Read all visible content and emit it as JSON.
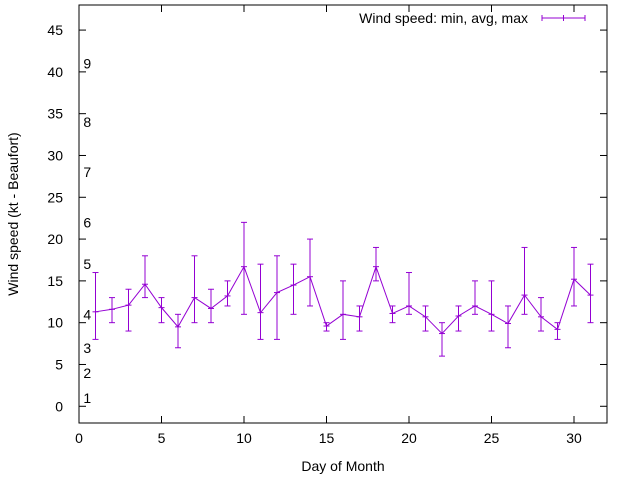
{
  "chart_data": {
    "type": "line",
    "title": "",
    "xlabel": "Day of Month",
    "ylabel": "Wind speed (kt - Beaufort)",
    "xlim": [
      0,
      32
    ],
    "ylim": [
      -2,
      48
    ],
    "xticks": [
      0,
      5,
      10,
      15,
      20,
      25,
      30
    ],
    "yticks": [
      0,
      5,
      10,
      15,
      20,
      25,
      30,
      35,
      40,
      45
    ],
    "beaufort_labels": [
      {
        "text": "1",
        "y": 1
      },
      {
        "text": "2",
        "y": 4
      },
      {
        "text": "3",
        "y": 7
      },
      {
        "text": "4",
        "y": 11
      },
      {
        "text": "5",
        "y": 17
      },
      {
        "text": "6",
        "y": 22
      },
      {
        "text": "7",
        "y": 28
      },
      {
        "text": "8",
        "y": 34
      },
      {
        "text": "9",
        "y": 41
      }
    ],
    "grid": false,
    "legend": "top-right",
    "series": [
      {
        "name": "Wind speed: min, avg, max",
        "color": "#9400d3",
        "points": [
          {
            "x": 1,
            "min": 8,
            "avg": 11.3,
            "max": 16
          },
          {
            "x": 2,
            "min": 10,
            "avg": 11.6,
            "max": 13
          },
          {
            "x": 3,
            "min": 9,
            "avg": 12.1,
            "max": 14
          },
          {
            "x": 4,
            "min": 13,
            "avg": 14.6,
            "max": 18
          },
          {
            "x": 5,
            "min": 10,
            "avg": 11.8,
            "max": 13
          },
          {
            "x": 6,
            "min": 7,
            "avg": 9.5,
            "max": 11
          },
          {
            "x": 7,
            "min": 10,
            "avg": 13.0,
            "max": 18
          },
          {
            "x": 8,
            "min": 10,
            "avg": 11.7,
            "max": 14
          },
          {
            "x": 9,
            "min": 12,
            "avg": 13.2,
            "max": 15
          },
          {
            "x": 10,
            "min": 11,
            "avg": 16.7,
            "max": 22
          },
          {
            "x": 11,
            "min": 8,
            "avg": 11.2,
            "max": 17
          },
          {
            "x": 12,
            "min": 8,
            "avg": 13.6,
            "max": 18
          },
          {
            "x": 13,
            "min": 11,
            "avg": 14.5,
            "max": 17
          },
          {
            "x": 14,
            "min": 12,
            "avg": 15.5,
            "max": 20
          },
          {
            "x": 15,
            "min": 9,
            "avg": 9.6,
            "max": 10
          },
          {
            "x": 16,
            "min": 8,
            "avg": 11.0,
            "max": 15
          },
          {
            "x": 17,
            "min": 9,
            "avg": 10.7,
            "max": 12
          },
          {
            "x": 18,
            "min": 15,
            "avg": 16.7,
            "max": 19
          },
          {
            "x": 19,
            "min": 10,
            "avg": 11.1,
            "max": 12
          },
          {
            "x": 20,
            "min": 11,
            "avg": 12.0,
            "max": 16
          },
          {
            "x": 21,
            "min": 9,
            "avg": 10.7,
            "max": 12
          },
          {
            "x": 22,
            "min": 6,
            "avg": 8.7,
            "max": 10
          },
          {
            "x": 23,
            "min": 9,
            "avg": 10.8,
            "max": 12
          },
          {
            "x": 24,
            "min": 11,
            "avg": 12.0,
            "max": 15
          },
          {
            "x": 25,
            "min": 9,
            "avg": 11.0,
            "max": 15
          },
          {
            "x": 26,
            "min": 7,
            "avg": 9.9,
            "max": 12
          },
          {
            "x": 27,
            "min": 11,
            "avg": 13.3,
            "max": 19
          },
          {
            "x": 28,
            "min": 9,
            "avg": 10.7,
            "max": 13
          },
          {
            "x": 29,
            "min": 8,
            "avg": 9.2,
            "max": 10
          },
          {
            "x": 30,
            "min": 12,
            "avg": 15.2,
            "max": 19
          },
          {
            "x": 31,
            "min": 10,
            "avg": 13.3,
            "max": 17
          }
        ]
      }
    ]
  }
}
